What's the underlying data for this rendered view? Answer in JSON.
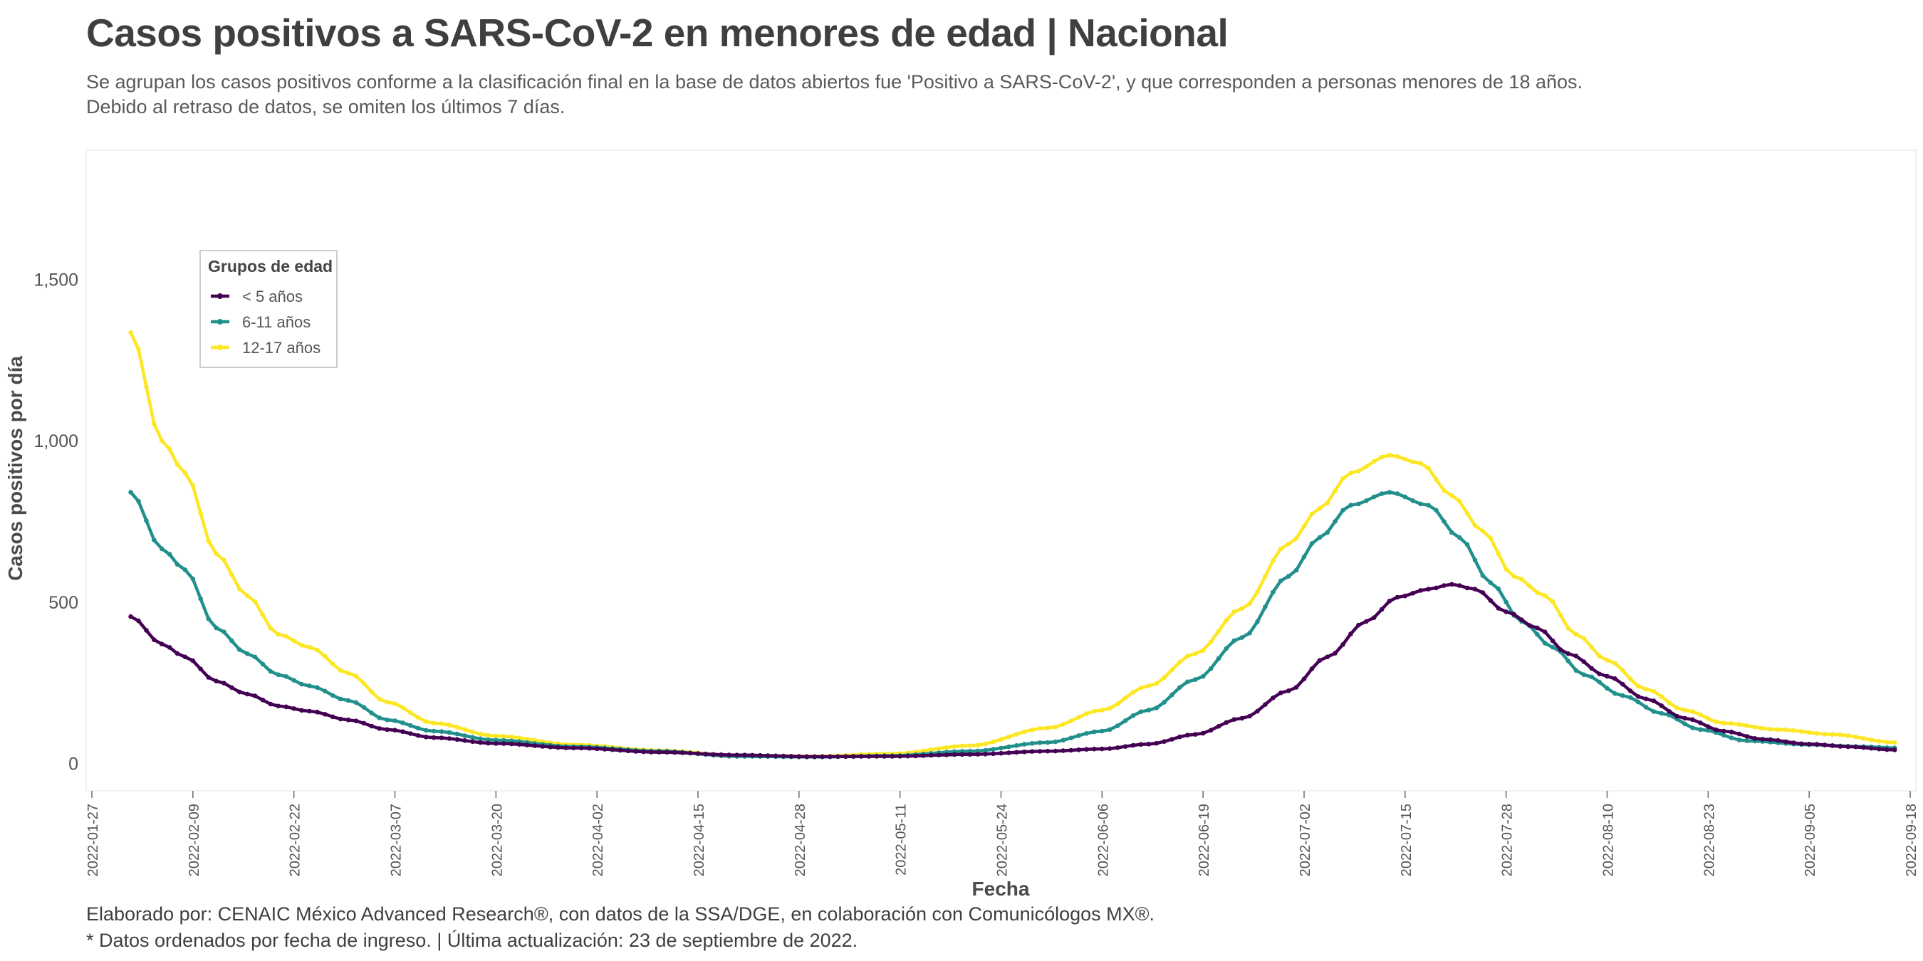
{
  "header": {
    "title": "Casos positivos a SARS-CoV-2 en menores de edad | Nacional",
    "subtitle_line1": "Se agrupan los casos positivos conforme a la clasificación final en la base de datos abiertos fue 'Positivo a SARS-CoV-2', y que corresponden a personas menores de 18 años.",
    "subtitle_line2": "Debido al retraso de datos, se omiten los últimos 7 días."
  },
  "footer": {
    "line1": "Elaborado por: CENAIC México Advanced Research®, con datos de la SSA/DGE, en colaboración con Comunicólogos MX®.",
    "line2": "* Datos ordenados por fecha de ingreso. | Última actualización: 23 de septiembre de 2022."
  },
  "chart_data": {
    "type": "line",
    "xlabel": "Fecha",
    "ylabel": "Casos positivos por día",
    "x_start": "2022-02-01",
    "x_end": "2022-09-16",
    "x_domain": [
      "2022-01-27",
      "2022-09-18"
    ],
    "x_ticks": [
      "2022-01-27",
      "2022-02-09",
      "2022-02-22",
      "2022-03-07",
      "2022-03-20",
      "2022-04-02",
      "2022-04-15",
      "2022-04-28",
      "2022-05-11",
      "2022-05-24",
      "2022-06-06",
      "2022-06-19",
      "2022-07-02",
      "2022-07-15",
      "2022-07-28",
      "2022-08-10",
      "2022-08-23",
      "2022-09-05",
      "2022-09-18"
    ],
    "ylim": [
      -85,
      1900
    ],
    "y_ticks": [
      0,
      500,
      1000,
      1500
    ],
    "y_tick_labels": [
      "0",
      "500",
      "1,000",
      "1,500"
    ],
    "grid": false,
    "legend": {
      "title": "Grupos de edad",
      "position": "top-left"
    },
    "series": [
      {
        "name": "< 5 años",
        "color": "#440154",
        "points": [
          [
            "2022-02-01",
            455
          ],
          [
            "2022-02-05",
            370
          ],
          [
            "2022-02-08",
            330
          ],
          [
            "2022-02-12",
            255
          ],
          [
            "2022-02-16",
            215
          ],
          [
            "2022-02-20",
            178
          ],
          [
            "2022-02-24",
            162
          ],
          [
            "2022-03-01",
            135
          ],
          [
            "2022-03-06",
            105
          ],
          [
            "2022-03-12",
            80
          ],
          [
            "2022-03-20",
            62
          ],
          [
            "2022-03-30",
            48
          ],
          [
            "2022-04-10",
            35
          ],
          [
            "2022-04-20",
            26
          ],
          [
            "2022-04-30",
            21
          ],
          [
            "2022-05-10",
            22
          ],
          [
            "2022-05-20",
            28
          ],
          [
            "2022-05-30",
            38
          ],
          [
            "2022-06-06",
            45
          ],
          [
            "2022-06-12",
            60
          ],
          [
            "2022-06-18",
            90
          ],
          [
            "2022-06-24",
            140
          ],
          [
            "2022-06-30",
            225
          ],
          [
            "2022-07-05",
            330
          ],
          [
            "2022-07-10",
            440
          ],
          [
            "2022-07-14",
            515
          ],
          [
            "2022-07-18",
            540
          ],
          [
            "2022-07-21",
            555
          ],
          [
            "2022-07-24",
            540
          ],
          [
            "2022-07-28",
            470
          ],
          [
            "2022-08-01",
            420
          ],
          [
            "2022-08-05",
            340
          ],
          [
            "2022-08-10",
            270
          ],
          [
            "2022-08-15",
            200
          ],
          [
            "2022-08-20",
            140
          ],
          [
            "2022-08-25",
            100
          ],
          [
            "2022-08-30",
            75
          ],
          [
            "2022-09-05",
            60
          ],
          [
            "2022-09-10",
            52
          ],
          [
            "2022-09-16",
            42
          ]
        ]
      },
      {
        "name": "6-11 años",
        "color": "#21908c",
        "points": [
          [
            "2022-02-01",
            840
          ],
          [
            "2022-02-05",
            665
          ],
          [
            "2022-02-08",
            600
          ],
          [
            "2022-02-12",
            420
          ],
          [
            "2022-02-16",
            340
          ],
          [
            "2022-02-20",
            275
          ],
          [
            "2022-02-24",
            240
          ],
          [
            "2022-03-01",
            195
          ],
          [
            "2022-03-06",
            135
          ],
          [
            "2022-03-12",
            100
          ],
          [
            "2022-03-20",
            72
          ],
          [
            "2022-03-30",
            52
          ],
          [
            "2022-04-10",
            38
          ],
          [
            "2022-04-20",
            22
          ],
          [
            "2022-04-30",
            20
          ],
          [
            "2022-05-10",
            24
          ],
          [
            "2022-05-20",
            38
          ],
          [
            "2022-05-30",
            65
          ],
          [
            "2022-06-06",
            100
          ],
          [
            "2022-06-12",
            165
          ],
          [
            "2022-06-18",
            260
          ],
          [
            "2022-06-24",
            390
          ],
          [
            "2022-06-30",
            580
          ],
          [
            "2022-07-04",
            700
          ],
          [
            "2022-07-08",
            800
          ],
          [
            "2022-07-13",
            840
          ],
          [
            "2022-07-18",
            800
          ],
          [
            "2022-07-22",
            700
          ],
          [
            "2022-07-26",
            560
          ],
          [
            "2022-07-30",
            440
          ],
          [
            "2022-08-03",
            360
          ],
          [
            "2022-08-07",
            275
          ],
          [
            "2022-08-12",
            210
          ],
          [
            "2022-08-17",
            155
          ],
          [
            "2022-08-22",
            105
          ],
          [
            "2022-08-28",
            70
          ],
          [
            "2022-09-05",
            58
          ],
          [
            "2022-09-12",
            52
          ],
          [
            "2022-09-16",
            48
          ]
        ]
      },
      {
        "name": "12-17 años",
        "color": "#fde725",
        "points": [
          [
            "2022-02-01",
            1335
          ],
          [
            "2022-02-05",
            1000
          ],
          [
            "2022-02-08",
            900
          ],
          [
            "2022-02-12",
            650
          ],
          [
            "2022-02-16",
            520
          ],
          [
            "2022-02-20",
            400
          ],
          [
            "2022-02-24",
            360
          ],
          [
            "2022-03-01",
            280
          ],
          [
            "2022-03-06",
            190
          ],
          [
            "2022-03-12",
            125
          ],
          [
            "2022-03-20",
            85
          ],
          [
            "2022-03-30",
            58
          ],
          [
            "2022-04-10",
            40
          ],
          [
            "2022-04-20",
            25
          ],
          [
            "2022-04-30",
            22
          ],
          [
            "2022-05-10",
            30
          ],
          [
            "2022-05-20",
            55
          ],
          [
            "2022-05-30",
            110
          ],
          [
            "2022-06-06",
            165
          ],
          [
            "2022-06-12",
            240
          ],
          [
            "2022-06-18",
            340
          ],
          [
            "2022-06-24",
            480
          ],
          [
            "2022-06-30",
            680
          ],
          [
            "2022-07-04",
            790
          ],
          [
            "2022-07-08",
            900
          ],
          [
            "2022-07-13",
            955
          ],
          [
            "2022-07-17",
            930
          ],
          [
            "2022-07-21",
            830
          ],
          [
            "2022-07-25",
            720
          ],
          [
            "2022-07-29",
            580
          ],
          [
            "2022-08-02",
            520
          ],
          [
            "2022-08-06",
            400
          ],
          [
            "2022-08-10",
            320
          ],
          [
            "2022-08-15",
            230
          ],
          [
            "2022-08-20",
            165
          ],
          [
            "2022-08-25",
            125
          ],
          [
            "2022-09-01",
            105
          ],
          [
            "2022-09-08",
            90
          ],
          [
            "2022-09-16",
            65
          ]
        ]
      }
    ]
  }
}
